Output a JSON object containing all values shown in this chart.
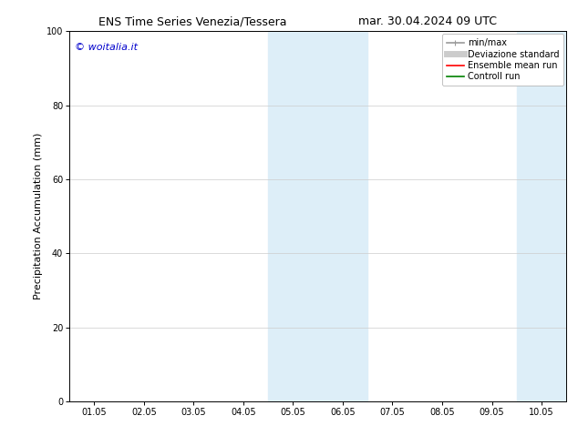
{
  "title_left": "ENS Time Series Venezia/Tessera",
  "title_right": "mar. 30.04.2024 09 UTC",
  "ylabel": "Precipitation Accumulation (mm)",
  "copyright_text": "© woitalia.it",
  "copyright_color": "#0000cc",
  "ylim": [
    0,
    100
  ],
  "yticks": [
    0,
    20,
    40,
    60,
    80,
    100
  ],
  "x_tick_labels": [
    "01.05",
    "02.05",
    "03.05",
    "04.05",
    "05.05",
    "06.05",
    "07.05",
    "08.05",
    "09.05",
    "10.05"
  ],
  "x_tick_positions": [
    0,
    1,
    2,
    3,
    4,
    5,
    6,
    7,
    8,
    9
  ],
  "xlim": [
    -0.5,
    9.5
  ],
  "shaded_regions": [
    {
      "x_start": 3.5,
      "x_end": 5.5,
      "color": "#ddeef8",
      "alpha": 1.0
    },
    {
      "x_start": 8.5,
      "x_end": 9.5,
      "color": "#ddeef8",
      "alpha": 1.0
    }
  ],
  "legend_items": [
    {
      "label": "min/max",
      "color": "#999999",
      "linestyle": "-",
      "linewidth": 1.2
    },
    {
      "label": "Deviazione standard",
      "color": "#cccccc",
      "linestyle": "-",
      "linewidth": 5
    },
    {
      "label": "Ensemble mean run",
      "color": "#ff0000",
      "linestyle": "-",
      "linewidth": 1.2
    },
    {
      "label": "Controll run",
      "color": "#008000",
      "linestyle": "-",
      "linewidth": 1.2
    }
  ],
  "bg_color": "#ffffff",
  "plot_bg_color": "#ffffff",
  "grid_color": "#cccccc",
  "title_fontsize": 9,
  "axis_label_fontsize": 8,
  "tick_fontsize": 7,
  "legend_fontsize": 7,
  "copyright_fontsize": 8
}
